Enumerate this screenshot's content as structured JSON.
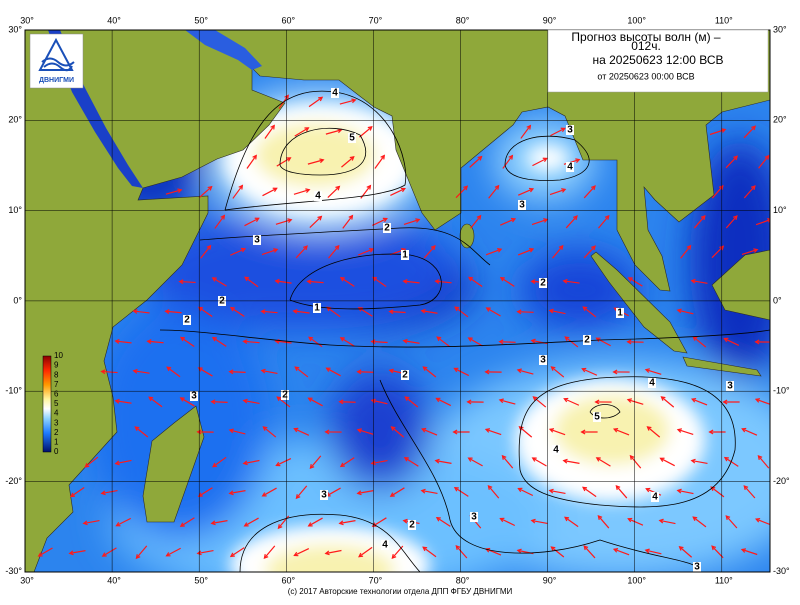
{
  "header": {
    "title_lines": [
      "Прогноз высоты волн (м) –",
      "012ч.",
      "на 20250623 12:00 ВСВ",
      "от 20250623 00:00 ВСВ"
    ]
  },
  "logo": {
    "label": "ДВНИГМИ"
  },
  "axes": {
    "lon_labels": [
      "30°",
      "40°",
      "50°",
      "60°",
      "70°",
      "80°",
      "90°",
      "100°",
      "110°"
    ],
    "lat_labels": [
      "30°",
      "20°",
      "10°",
      "0°",
      "-10°",
      "-20°",
      "-30°"
    ]
  },
  "legend": {
    "labels": [
      "10",
      "9",
      "8",
      "7",
      "6",
      "5",
      "4",
      "3",
      "2",
      "1",
      "0"
    ]
  },
  "contour_labels": [
    "4",
    "5",
    "4",
    "3",
    "2",
    "1",
    "1",
    "2",
    "2",
    "3",
    "4",
    "3",
    "2",
    "2",
    "3",
    "4",
    "5",
    "4",
    "4",
    "3",
    "2",
    "2",
    "3",
    "2",
    "3",
    "4",
    "3",
    "3",
    "1"
  ],
  "footer": "(c) 2017 Авторские технологии отдела ДПП ФГБУ ДВНИГМИ"
}
